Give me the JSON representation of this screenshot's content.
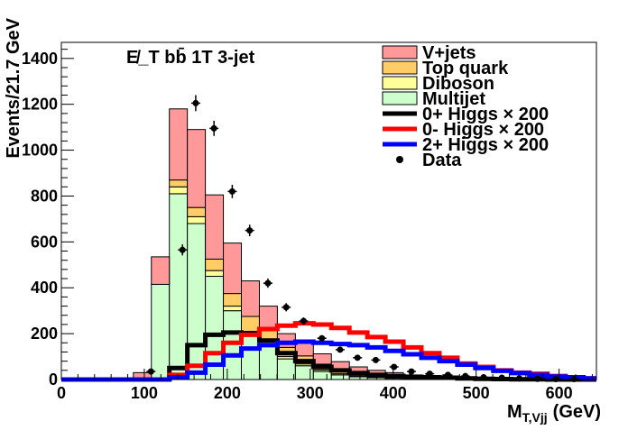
{
  "chart_data": {
    "type": "bar",
    "variant": "stacked-histogram-with-overlays",
    "title": "",
    "plot_label": "E̸_T bb̄ 1T 3-jet",
    "xlabel": "M_T,Vjj (GeV)",
    "xlabel_main": "M",
    "xlabel_sub": "T,Vjj",
    "xlabel_unit": "(GeV)",
    "ylabel": "Events/21.7 GeV",
    "xlim": [
      0,
      645
    ],
    "ylim": [
      0,
      1470
    ],
    "bin_width": 21.7,
    "x_ticks": [
      0,
      100,
      200,
      300,
      400,
      500,
      600
    ],
    "y_ticks": [
      0,
      200,
      400,
      600,
      800,
      1000,
      1200,
      1400
    ],
    "bin_edges": [
      0,
      21.7,
      43.4,
      65.1,
      86.8,
      108.5,
      130.2,
      151.9,
      173.6,
      195.3,
      217,
      238.7,
      260.4,
      282.1,
      303.8,
      325.5,
      347.2,
      368.9,
      390.6,
      412.3,
      434,
      455.7,
      477.4,
      499.1,
      520.8,
      542.5,
      564.2,
      585.9,
      607.6,
      629.3,
      651
    ],
    "stack_series": [
      {
        "name": "Multijet",
        "color": "#ccffcc",
        "values": [
          0,
          0,
          0,
          0,
          0,
          415,
          810,
          680,
          450,
          300,
          190,
          150,
          90,
          60,
          35,
          20,
          12,
          8,
          5,
          3,
          2,
          1,
          1,
          0,
          0,
          0,
          0,
          0,
          0,
          0
        ]
      },
      {
        "name": "Diboson",
        "color": "#ffff99",
        "values": [
          0,
          0,
          0,
          0,
          0,
          0,
          30,
          30,
          25,
          20,
          20,
          15,
          10,
          8,
          7,
          5,
          4,
          3,
          2,
          2,
          1,
          1,
          1,
          0,
          0,
          0,
          0,
          0,
          0,
          0
        ]
      },
      {
        "name": "Top quark",
        "color": "#ffcc66",
        "values": [
          0,
          0,
          0,
          0,
          0,
          0,
          30,
          40,
          50,
          55,
          65,
          55,
          40,
          35,
          25,
          18,
          12,
          8,
          6,
          4,
          3,
          2,
          1,
          1,
          0,
          0,
          0,
          0,
          0,
          0
        ]
      },
      {
        "name": "V+jets",
        "color": "#ff9999",
        "values": [
          0,
          0,
          0,
          0,
          30,
          120,
          310,
          340,
          280,
          220,
          155,
          100,
          60,
          55,
          45,
          35,
          27,
          21,
          17,
          11,
          9,
          6,
          4,
          2,
          2,
          2,
          1,
          1,
          1,
          0
        ]
      }
    ],
    "line_series": [
      {
        "name": "0+ Higgs × 200",
        "color": "#000000",
        "values": [
          0,
          0,
          0,
          0,
          0,
          0,
          50,
          150,
          195,
          205,
          200,
          170,
          115,
          80,
          55,
          40,
          28,
          20,
          15,
          12,
          10,
          8,
          5,
          3,
          2,
          1,
          1,
          0,
          0,
          0
        ]
      },
      {
        "name": "0- Higgs × 200",
        "color": "#ff0000",
        "values": [
          0,
          0,
          0,
          0,
          0,
          0,
          20,
          60,
          115,
          160,
          195,
          220,
          235,
          245,
          240,
          225,
          205,
          185,
          165,
          140,
          115,
          95,
          70,
          55,
          40,
          30,
          25,
          15,
          10,
          5
        ]
      },
      {
        "name": "2+ Higgs × 200",
        "color": "#0000ff",
        "values": [
          0,
          0,
          0,
          0,
          0,
          0,
          10,
          30,
          65,
          105,
          135,
          150,
          160,
          165,
          160,
          155,
          150,
          140,
          125,
          110,
          95,
          80,
          65,
          50,
          38,
          28,
          20,
          13,
          10,
          5
        ]
      }
    ],
    "data_points": {
      "name": "Data",
      "x": [
        108,
        146,
        162,
        184,
        206,
        227,
        249,
        271,
        292,
        314,
        336,
        357,
        379,
        401,
        422,
        444,
        466,
        487,
        509,
        531,
        552,
        574,
        596,
        618
      ],
      "y": [
        35,
        565,
        1205,
        1095,
        820,
        650,
        420,
        315,
        255,
        180,
        130,
        95,
        85,
        55,
        35,
        25,
        20,
        15,
        10,
        8,
        5,
        3,
        2,
        2
      ],
      "yerr": [
        6,
        24,
        35,
        33,
        29,
        25,
        20,
        18,
        16,
        13,
        11,
        10,
        9,
        7,
        6,
        5,
        4,
        4,
        3,
        3,
        2,
        2,
        1,
        1
      ]
    },
    "legend": {
      "position": "top-right",
      "entries": [
        {
          "label": "V+jets",
          "kind": "fill",
          "color": "#ff9999"
        },
        {
          "label": "Top quark",
          "kind": "fill",
          "color": "#ffcc66"
        },
        {
          "label": "Diboson",
          "kind": "fill",
          "color": "#ffff99"
        },
        {
          "label": "Multijet",
          "kind": "fill",
          "color": "#ccffcc"
        },
        {
          "label": "0+ Higgs × 200",
          "kind": "line",
          "color": "#000000"
        },
        {
          "label": "0- Higgs × 200",
          "kind": "line",
          "color": "#ff0000"
        },
        {
          "label": "2+ Higgs × 200",
          "kind": "line",
          "color": "#0000ff"
        },
        {
          "label": "Data",
          "kind": "marker",
          "color": "#000000"
        }
      ]
    }
  }
}
